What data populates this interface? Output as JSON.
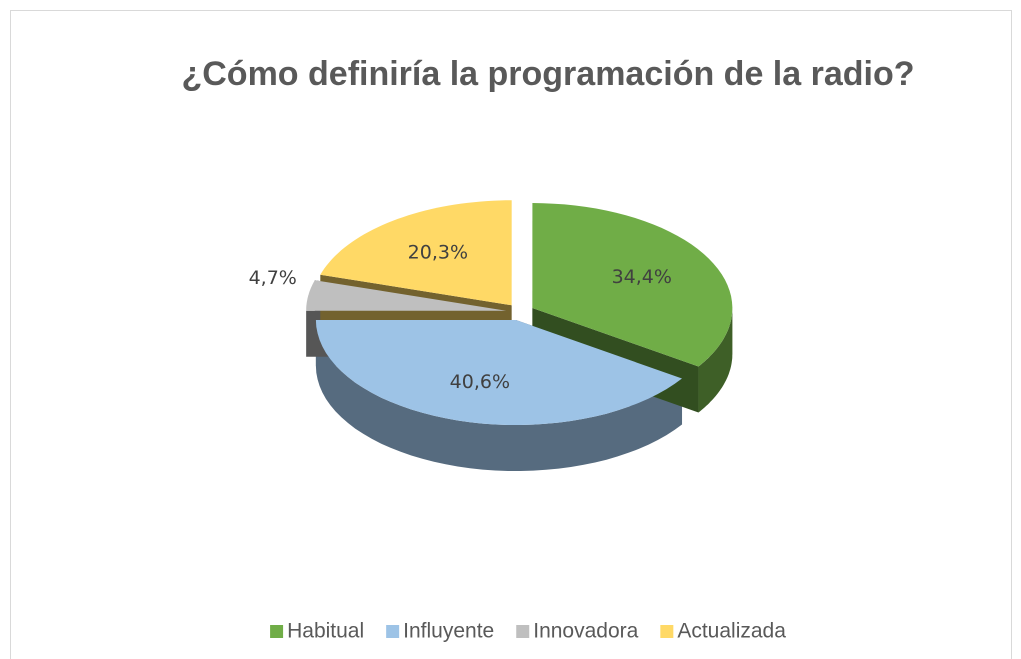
{
  "chart_data": {
    "type": "pie",
    "title": "¿Cómo definiría la programación de la radio?",
    "categories": [
      "Habitual",
      "Influyente",
      "Innovadora",
      "Actualizada"
    ],
    "values": [
      34.4,
      40.6,
      4.7,
      20.3
    ],
    "value_labels": [
      "34,4%",
      "40,6%",
      "4,7%",
      "20,3%"
    ],
    "colors": [
      "#70ad47",
      "#9dc3e6",
      "#bfbfbf",
      "#ffd966"
    ],
    "legend": "bottom"
  }
}
